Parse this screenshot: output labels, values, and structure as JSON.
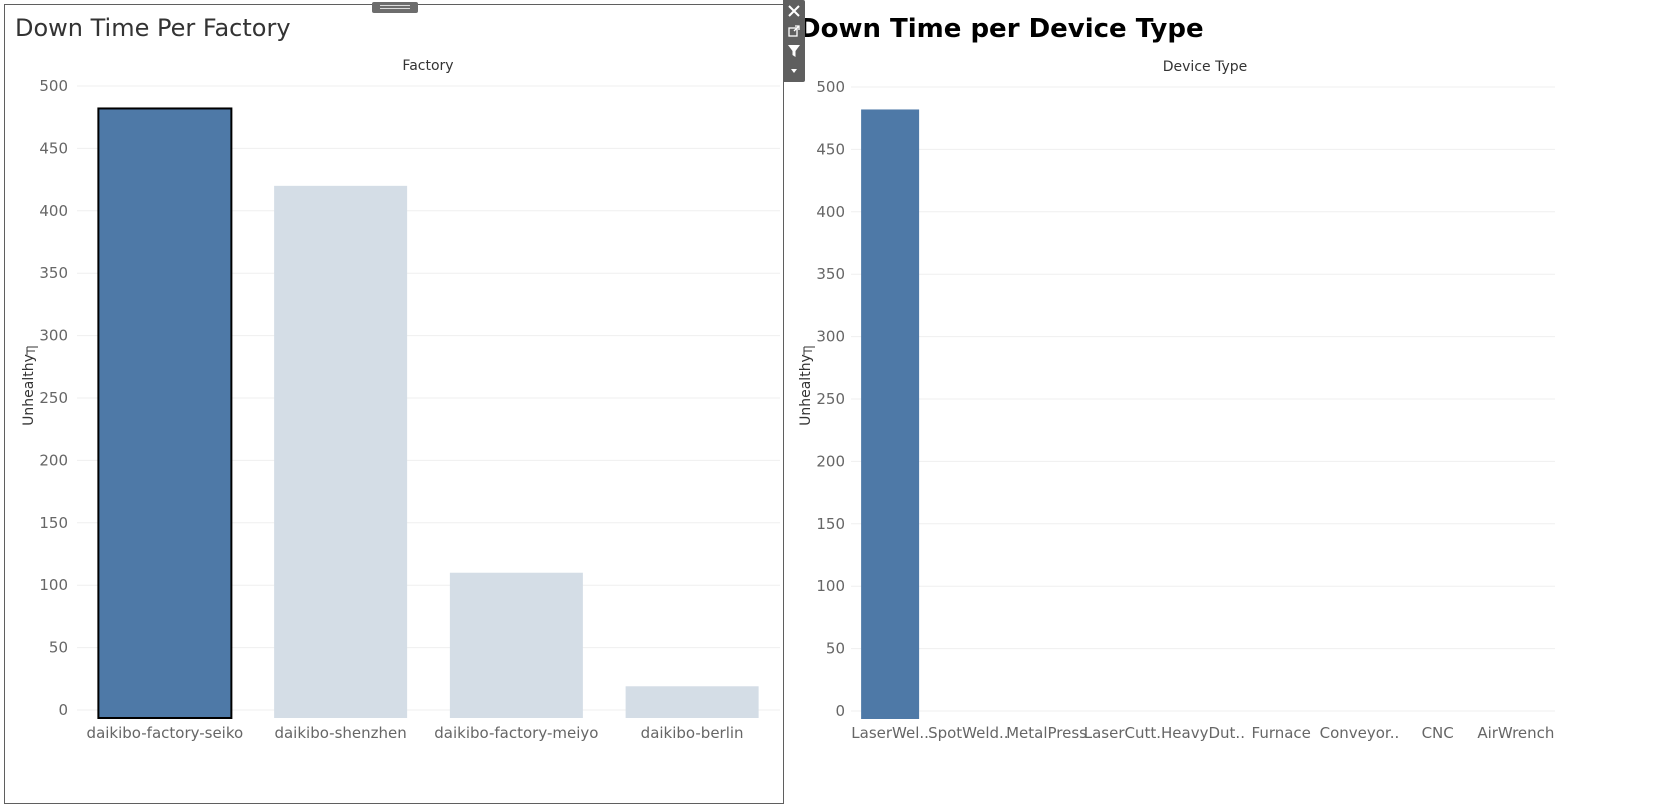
{
  "colors": {
    "selected": "#4e79a7",
    "unselected": "#d4dde6",
    "gridline": "#efefef",
    "selection_border": "#000000"
  },
  "toolbar": {
    "close_icon": "close-icon",
    "popout_icon": "popout-icon",
    "filter_icon": "filter-icon",
    "more_icon": "dropdown-arrow-icon"
  },
  "chart_data": [
    {
      "type": "bar",
      "title": "Down Time Per Factory",
      "header": "Factory",
      "xlabel": "",
      "ylabel": "Unhealthy",
      "ylim": [
        0,
        500
      ],
      "yticks": [
        0,
        50,
        100,
        150,
        200,
        250,
        300,
        350,
        400,
        450,
        500
      ],
      "grid": true,
      "categories": [
        "daikibo-factory-seiko",
        "daikibo-shenzhen",
        "daikibo-factory-meiyo",
        "daikibo-berlin"
      ],
      "values": [
        482,
        420,
        110,
        19
      ],
      "selected": [
        true,
        false,
        false,
        false
      ]
    },
    {
      "type": "bar",
      "title": "Down Time per Device Type",
      "header": "Device Type",
      "xlabel": "",
      "ylabel": "Unhealthy",
      "ylim": [
        0,
        500
      ],
      "yticks": [
        0,
        50,
        100,
        150,
        200,
        250,
        300,
        350,
        400,
        450,
        500
      ],
      "grid": true,
      "categories": [
        "LaserWel..",
        "SpotWeld..",
        "MetalPress",
        "LaserCutt..",
        "HeavyDut..",
        "Furnace",
        "Conveyor..",
        "CNC",
        "AirWrench"
      ],
      "values": [
        482,
        0,
        0,
        0,
        0,
        0,
        0,
        0,
        0
      ],
      "selected": [
        true,
        false,
        false,
        false,
        false,
        false,
        false,
        false,
        false
      ]
    }
  ]
}
